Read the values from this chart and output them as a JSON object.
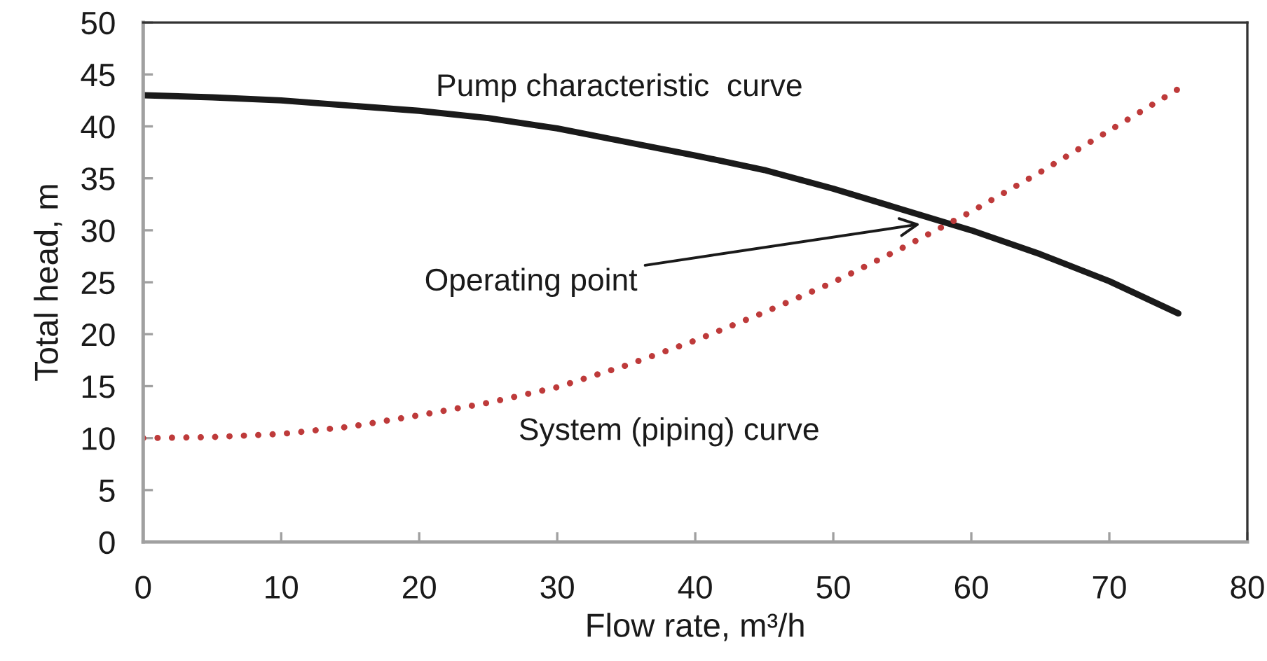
{
  "chart_data": {
    "type": "line",
    "xlabel": "Flow rate, m³/h",
    "ylabel": "Total head, m",
    "x": [
      0,
      5,
      10,
      15,
      20,
      25,
      30,
      35,
      40,
      45,
      50,
      55,
      60,
      65,
      70,
      75
    ],
    "series": [
      {
        "name": "Pump characteristic  curve",
        "color": "#1a1a1a",
        "line_style": "solid",
        "values": [
          43,
          42.8,
          42.5,
          42.0,
          41.5,
          40.8,
          39.8,
          38.5,
          37.2,
          35.8,
          34.0,
          32.0,
          30.0,
          27.7,
          25.1,
          22
        ]
      },
      {
        "name": "System (piping) curve",
        "color": "#be3a3a",
        "line_style": "dotted",
        "values": [
          10,
          10.1,
          10.4,
          11.1,
          12.2,
          13.4,
          14.9,
          17.0,
          19.4,
          22.1,
          25.0,
          28.3,
          31.8,
          35.6,
          39.6,
          43.6
        ]
      }
    ],
    "annotations": [
      {
        "text": "Operating point",
        "x": 56.3,
        "y": 30.6
      }
    ],
    "marker": "none",
    "grid": false,
    "xlim": [
      0,
      80
    ],
    "xticks": [
      0,
      10,
      20,
      30,
      40,
      50,
      60,
      70,
      80
    ],
    "ylim": [
      0,
      50
    ],
    "yticks": [
      0,
      5,
      10,
      15,
      20,
      25,
      30,
      35,
      40,
      45,
      50
    ]
  }
}
